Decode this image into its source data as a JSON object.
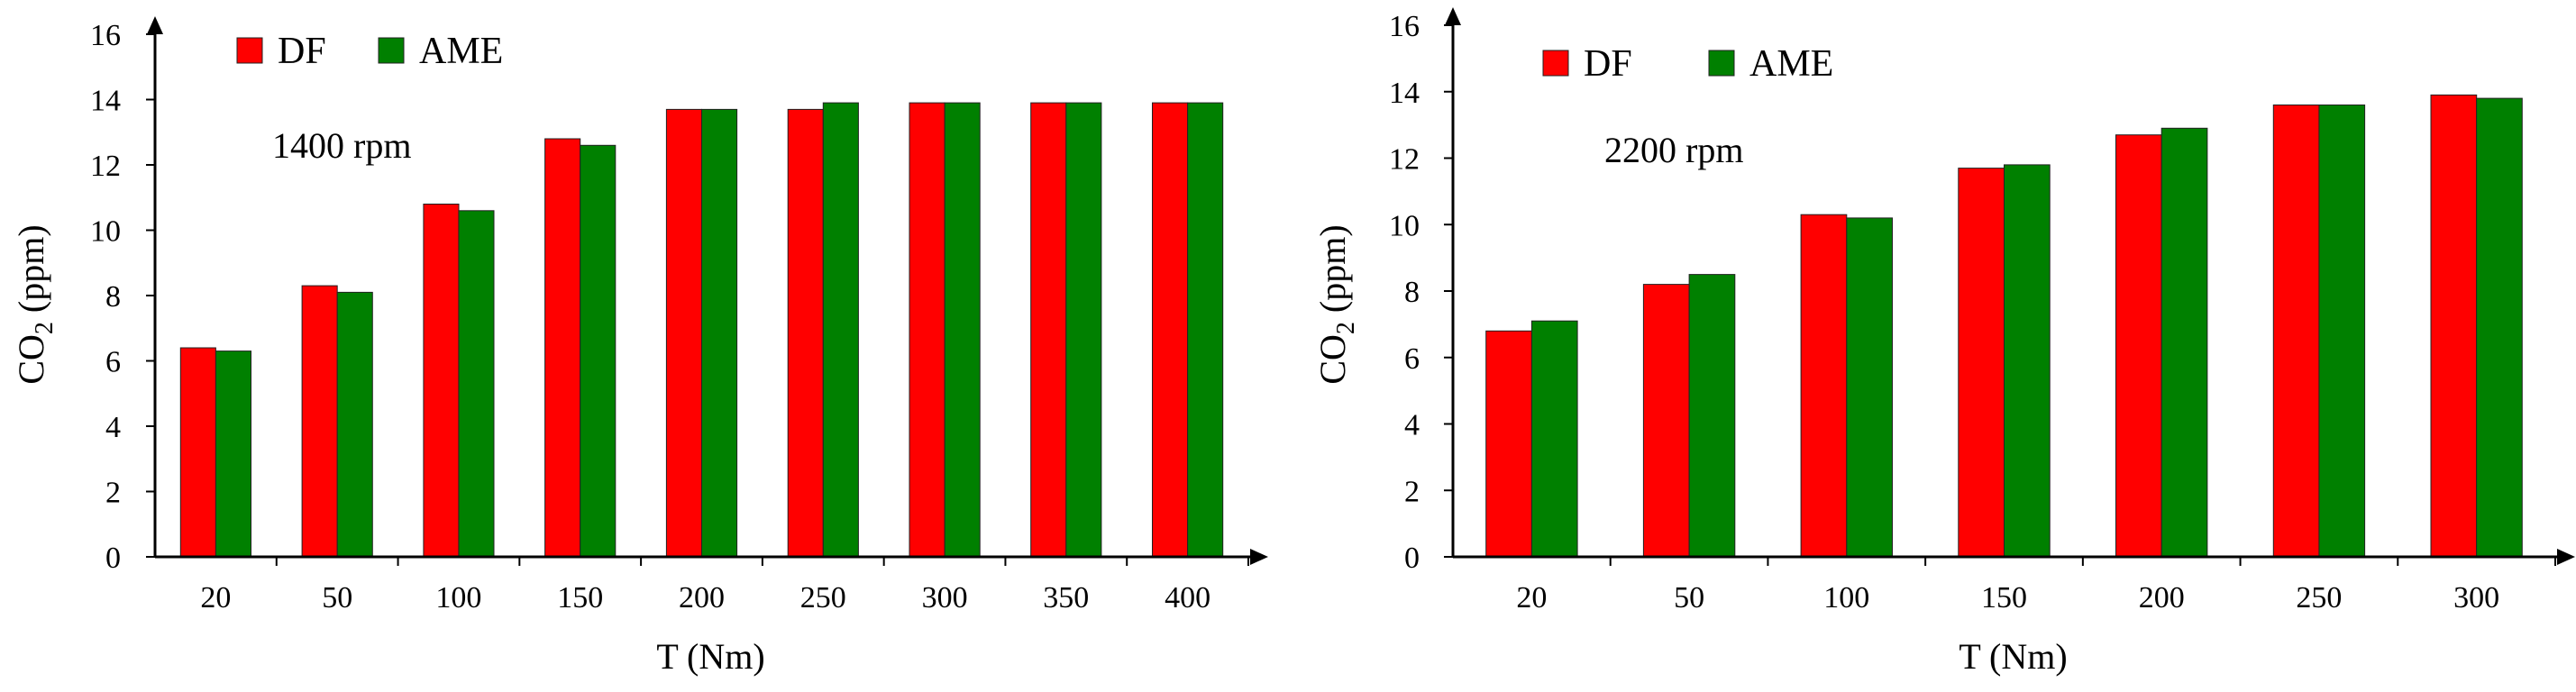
{
  "chart_data": [
    {
      "type": "bar",
      "annotation": "1400 rpm",
      "xlabel": "T (Nm)",
      "ylabel_main": "CO",
      "ylabel_sub": "2",
      "ylabel_unit": "(ppm)",
      "ylim": [
        0,
        16
      ],
      "yticks": [
        0,
        2,
        4,
        6,
        8,
        10,
        12,
        14,
        16
      ],
      "grid": false,
      "legend": "top-left",
      "categories": [
        "20",
        "50",
        "100",
        "150",
        "200",
        "250",
        "300",
        "350",
        "400"
      ],
      "series": [
        {
          "name": "DF",
          "color": "#ff0000",
          "values": [
            6.4,
            8.3,
            10.8,
            12.8,
            13.7,
            13.7,
            13.9,
            13.9,
            13.9
          ]
        },
        {
          "name": "AME",
          "color": "#008000",
          "values": [
            6.3,
            8.1,
            10.6,
            12.6,
            13.7,
            13.9,
            13.9,
            13.9,
            13.9
          ]
        }
      ]
    },
    {
      "type": "bar",
      "annotation": "2200 rpm",
      "xlabel": "T (Nm)",
      "ylabel_main": "CO",
      "ylabel_sub": "2",
      "ylabel_unit": "(ppm)",
      "ylim": [
        0,
        16
      ],
      "yticks": [
        0,
        2,
        4,
        6,
        8,
        10,
        12,
        14,
        16
      ],
      "grid": false,
      "legend": "top-left",
      "categories": [
        "20",
        "50",
        "100",
        "150",
        "200",
        "250",
        "300"
      ],
      "series": [
        {
          "name": "DF",
          "color": "#ff0000",
          "values": [
            6.8,
            8.2,
            10.3,
            11.7,
            12.7,
            13.6,
            13.9
          ]
        },
        {
          "name": "AME",
          "color": "#008000",
          "values": [
            7.1,
            8.5,
            10.2,
            11.8,
            12.9,
            13.6,
            13.8
          ]
        }
      ]
    }
  ]
}
